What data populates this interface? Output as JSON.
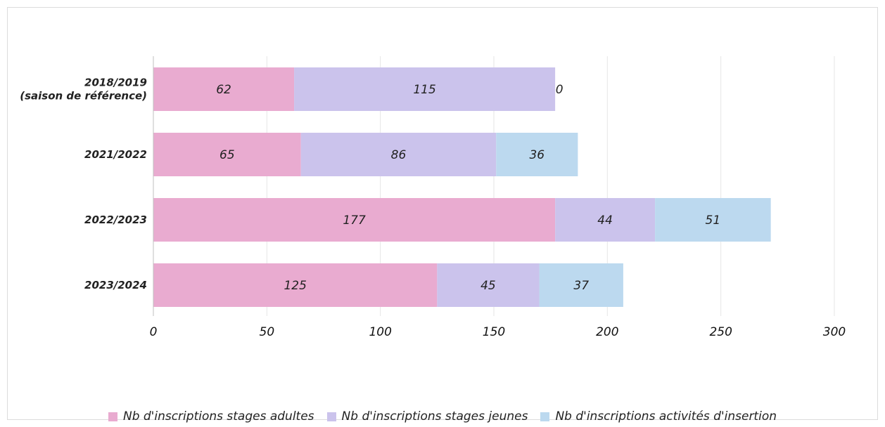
{
  "chart_data": {
    "type": "bar",
    "orientation": "horizontal",
    "stacked": true,
    "title": "",
    "xlabel": "",
    "ylabel": "",
    "xlim": [
      0,
      300
    ],
    "x_ticks": [
      0,
      50,
      100,
      150,
      200,
      250,
      300
    ],
    "grid": "vertical",
    "legend_position": "bottom",
    "categories": [
      [
        "2018/2019",
        "(saison de référence)"
      ],
      [
        "2021/2022"
      ],
      [
        "2022/2023"
      ],
      [
        "2023/2024"
      ]
    ],
    "series": [
      {
        "name": "Nb d'inscriptions stages adultes",
        "color": "#e9abd0",
        "values": [
          62,
          65,
          177,
          125
        ]
      },
      {
        "name": "Nb d'inscriptions stages jeunes",
        "color": "#cbc3ec",
        "values": [
          115,
          86,
          44,
          45
        ]
      },
      {
        "name": "Nb d'inscriptions activités d'insertion",
        "color": "#bcd9ef",
        "values": [
          0,
          36,
          51,
          37
        ]
      }
    ]
  }
}
